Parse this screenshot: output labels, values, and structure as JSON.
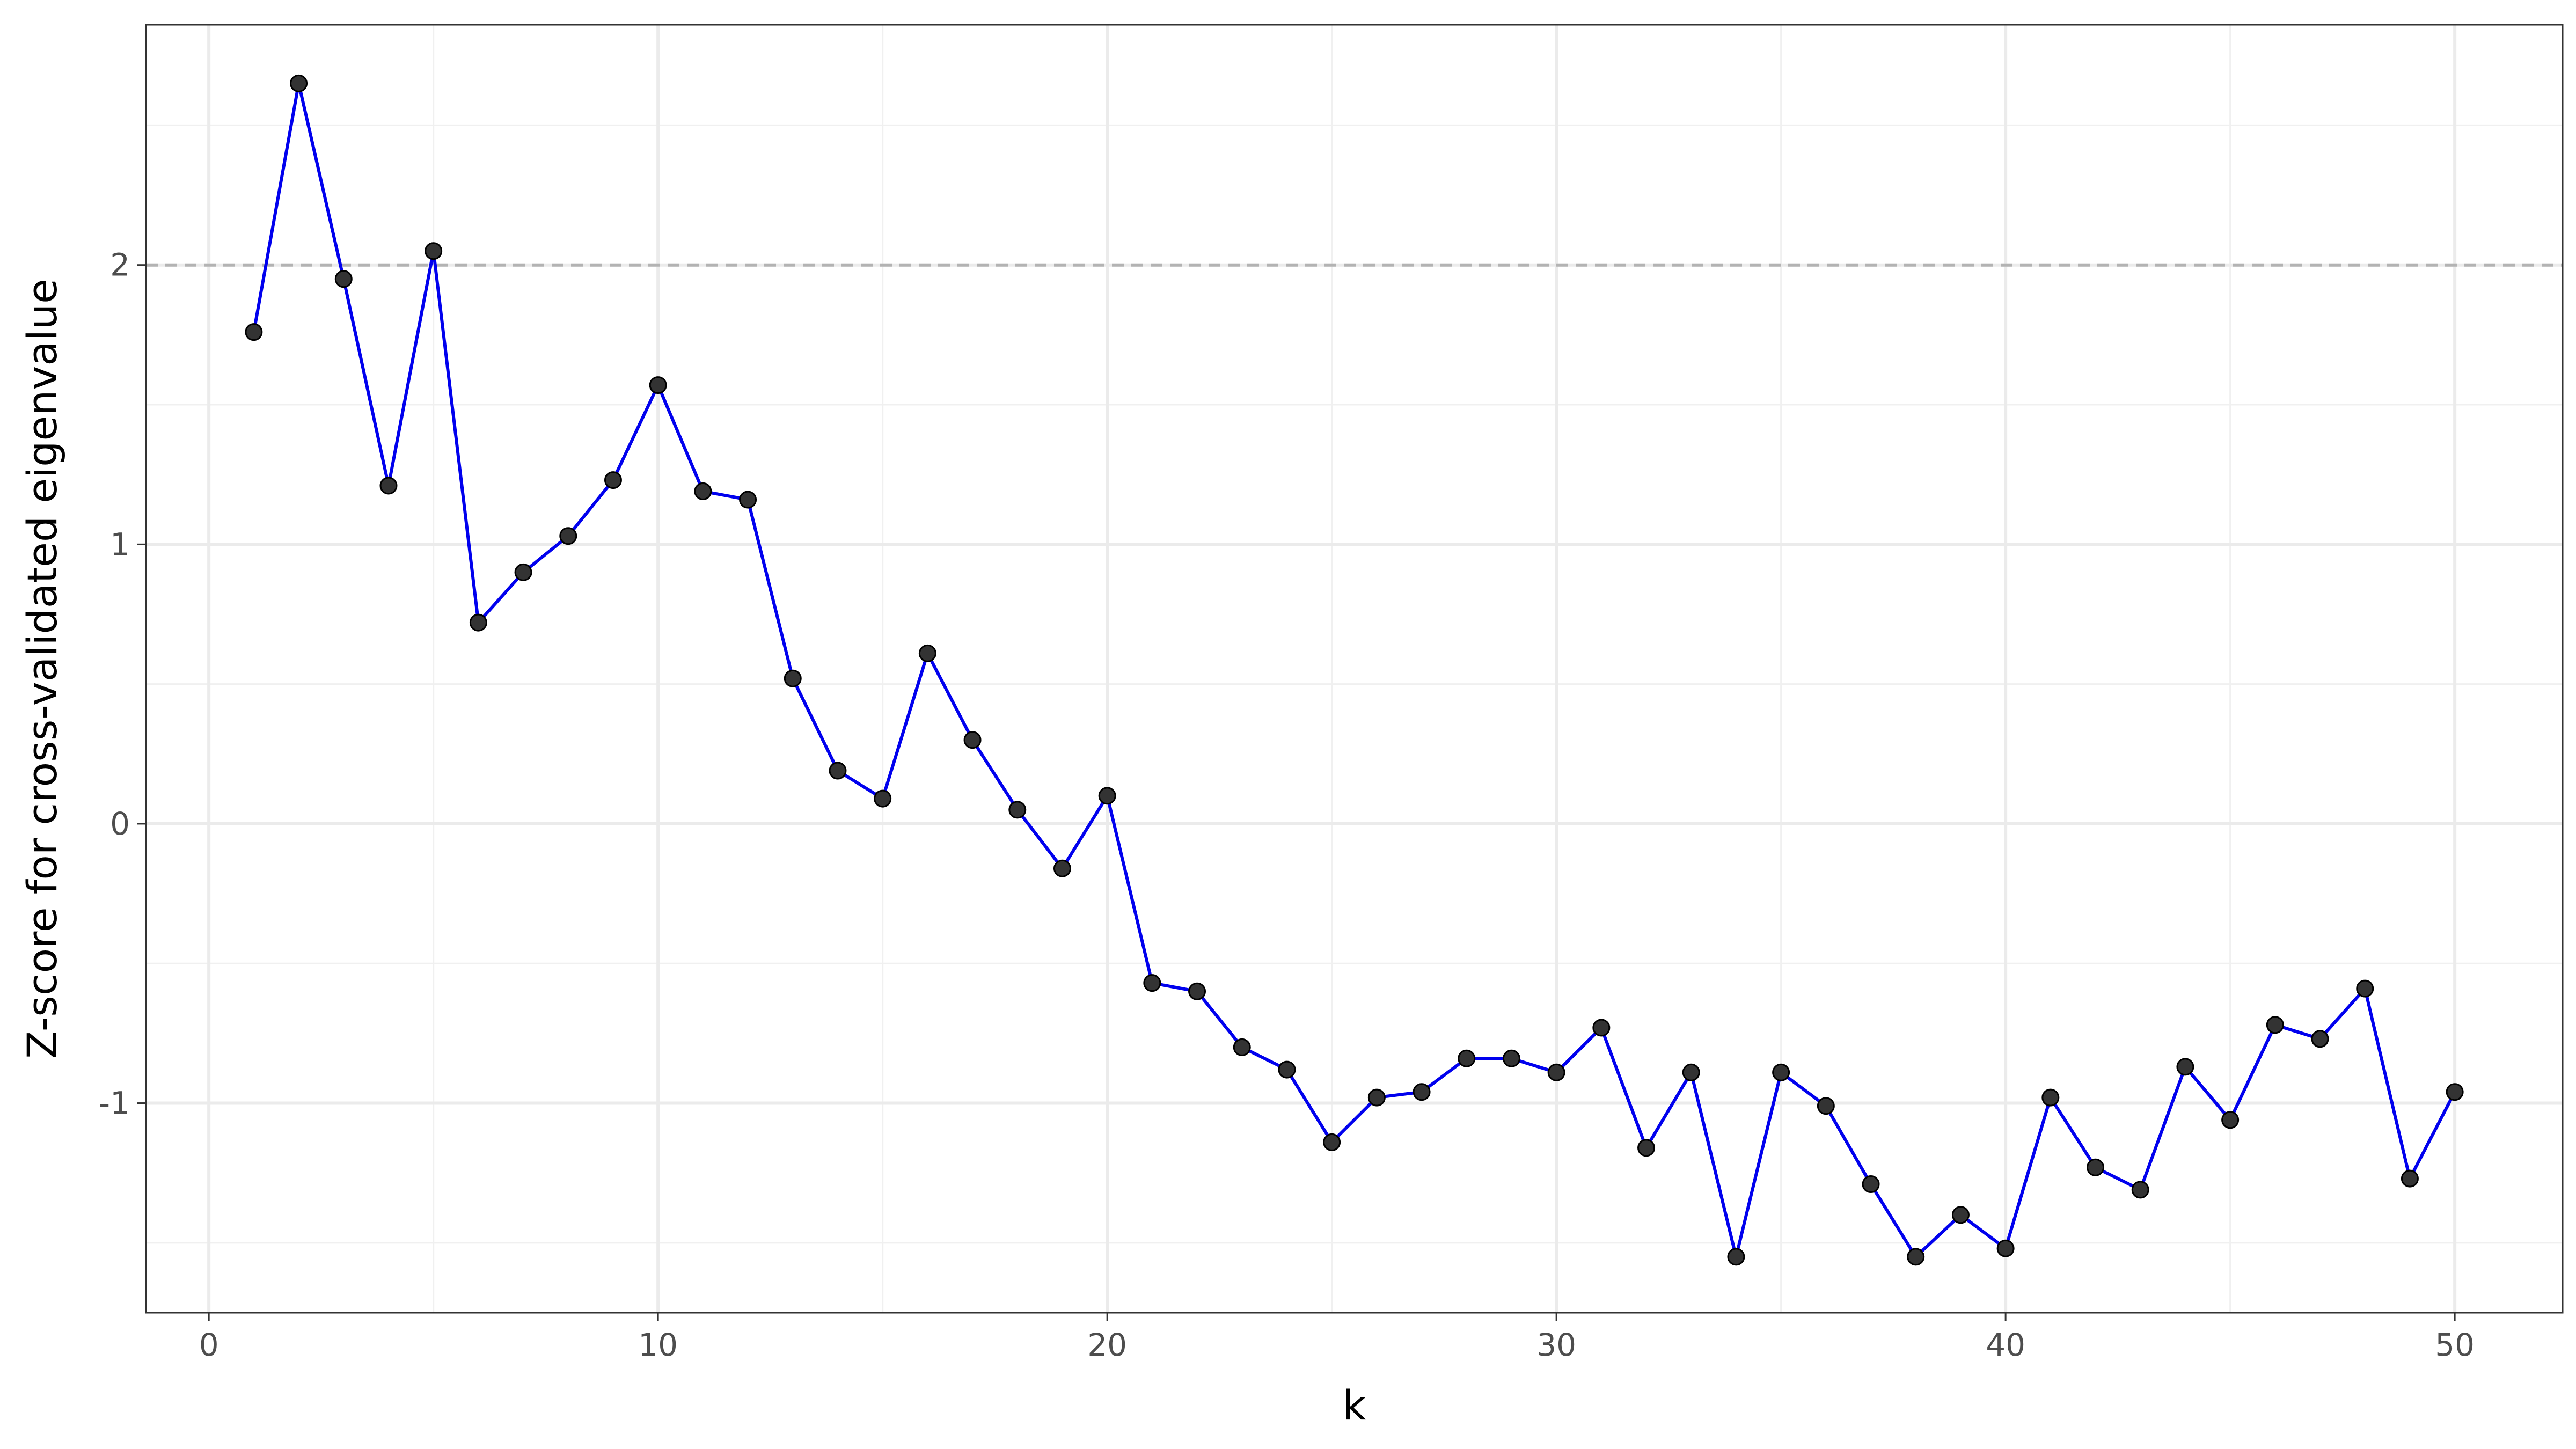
{
  "chart_data": {
    "type": "line",
    "title": "",
    "xlabel": "k",
    "ylabel": "Z-score for cross-validated eigenvalue",
    "xlim": [
      -1.4,
      52.4
    ],
    "ylim": [
      -1.75,
      2.86
    ],
    "x_ticks": [
      0,
      10,
      20,
      30,
      40,
      50
    ],
    "x_tick_labels": [
      "0",
      "10",
      "20",
      "30",
      "40",
      "50"
    ],
    "y_ticks": [
      -1,
      0,
      1,
      2
    ],
    "y_tick_labels": [
      "-1",
      "0",
      "1",
      "2"
    ],
    "grid": true,
    "reference_line": {
      "y": 2,
      "style": "dashed",
      "color": "#b3b3b3"
    },
    "line_color": "#0000ee",
    "point_color": "#333333",
    "x": [
      1,
      2,
      3,
      4,
      5,
      6,
      7,
      8,
      9,
      10,
      11,
      12,
      13,
      14,
      15,
      16,
      17,
      18,
      19,
      20,
      21,
      22,
      23,
      24,
      25,
      26,
      27,
      28,
      29,
      30,
      31,
      32,
      33,
      34,
      35,
      36,
      37,
      38,
      39,
      40,
      41,
      42,
      43,
      44,
      45,
      46,
      47,
      48,
      49,
      50
    ],
    "y": [
      1.76,
      2.65,
      1.95,
      1.21,
      2.05,
      0.72,
      0.9,
      1.03,
      1.23,
      1.57,
      1.19,
      1.16,
      0.52,
      0.19,
      0.09,
      0.61,
      0.3,
      0.05,
      -0.16,
      0.1,
      -0.57,
      -0.6,
      -0.8,
      -0.88,
      -1.14,
      -0.98,
      -0.96,
      -0.84,
      -0.84,
      -0.89,
      -0.73,
      -1.16,
      -0.89,
      -1.55,
      -0.89,
      -1.01,
      -1.29,
      -1.55,
      -1.4,
      -1.52,
      -0.98,
      -1.23,
      -1.31,
      -0.87,
      -1.06,
      -0.72,
      -0.77,
      -0.59,
      -1.27,
      -0.96
    ]
  }
}
